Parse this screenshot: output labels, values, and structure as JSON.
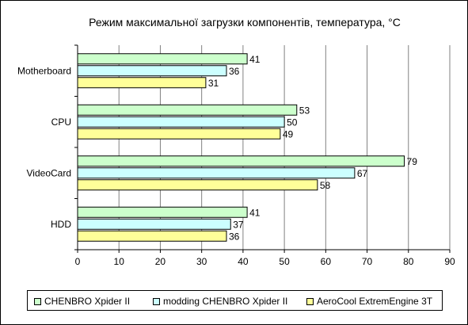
{
  "colors": {
    "series": [
      "#ccffcc",
      "#ccffff",
      "#ffff99"
    ],
    "plot_background": "#ffffff",
    "grid": "#808080"
  },
  "chart_data": {
    "type": "bar",
    "orientation": "horizontal",
    "title": "Режим максимальної загрузки компонентів, температура, °С",
    "categories": [
      "Motherboard",
      "CPU",
      "VideoCard",
      "HDD"
    ],
    "series": [
      {
        "name": "CHENBRO Xpider II",
        "values": [
          41,
          53,
          79,
          41
        ]
      },
      {
        "name": "modding CHENBRO Xpider II",
        "values": [
          36,
          50,
          67,
          37
        ]
      },
      {
        "name": "AeroCool ExtremEngine 3T",
        "values": [
          31,
          49,
          58,
          36
        ]
      }
    ],
    "xlim": [
      0,
      90
    ],
    "x_ticks": [
      0,
      10,
      20,
      30,
      40,
      50,
      60,
      70,
      80,
      90
    ],
    "grid": true,
    "legend_position": "bottom"
  }
}
